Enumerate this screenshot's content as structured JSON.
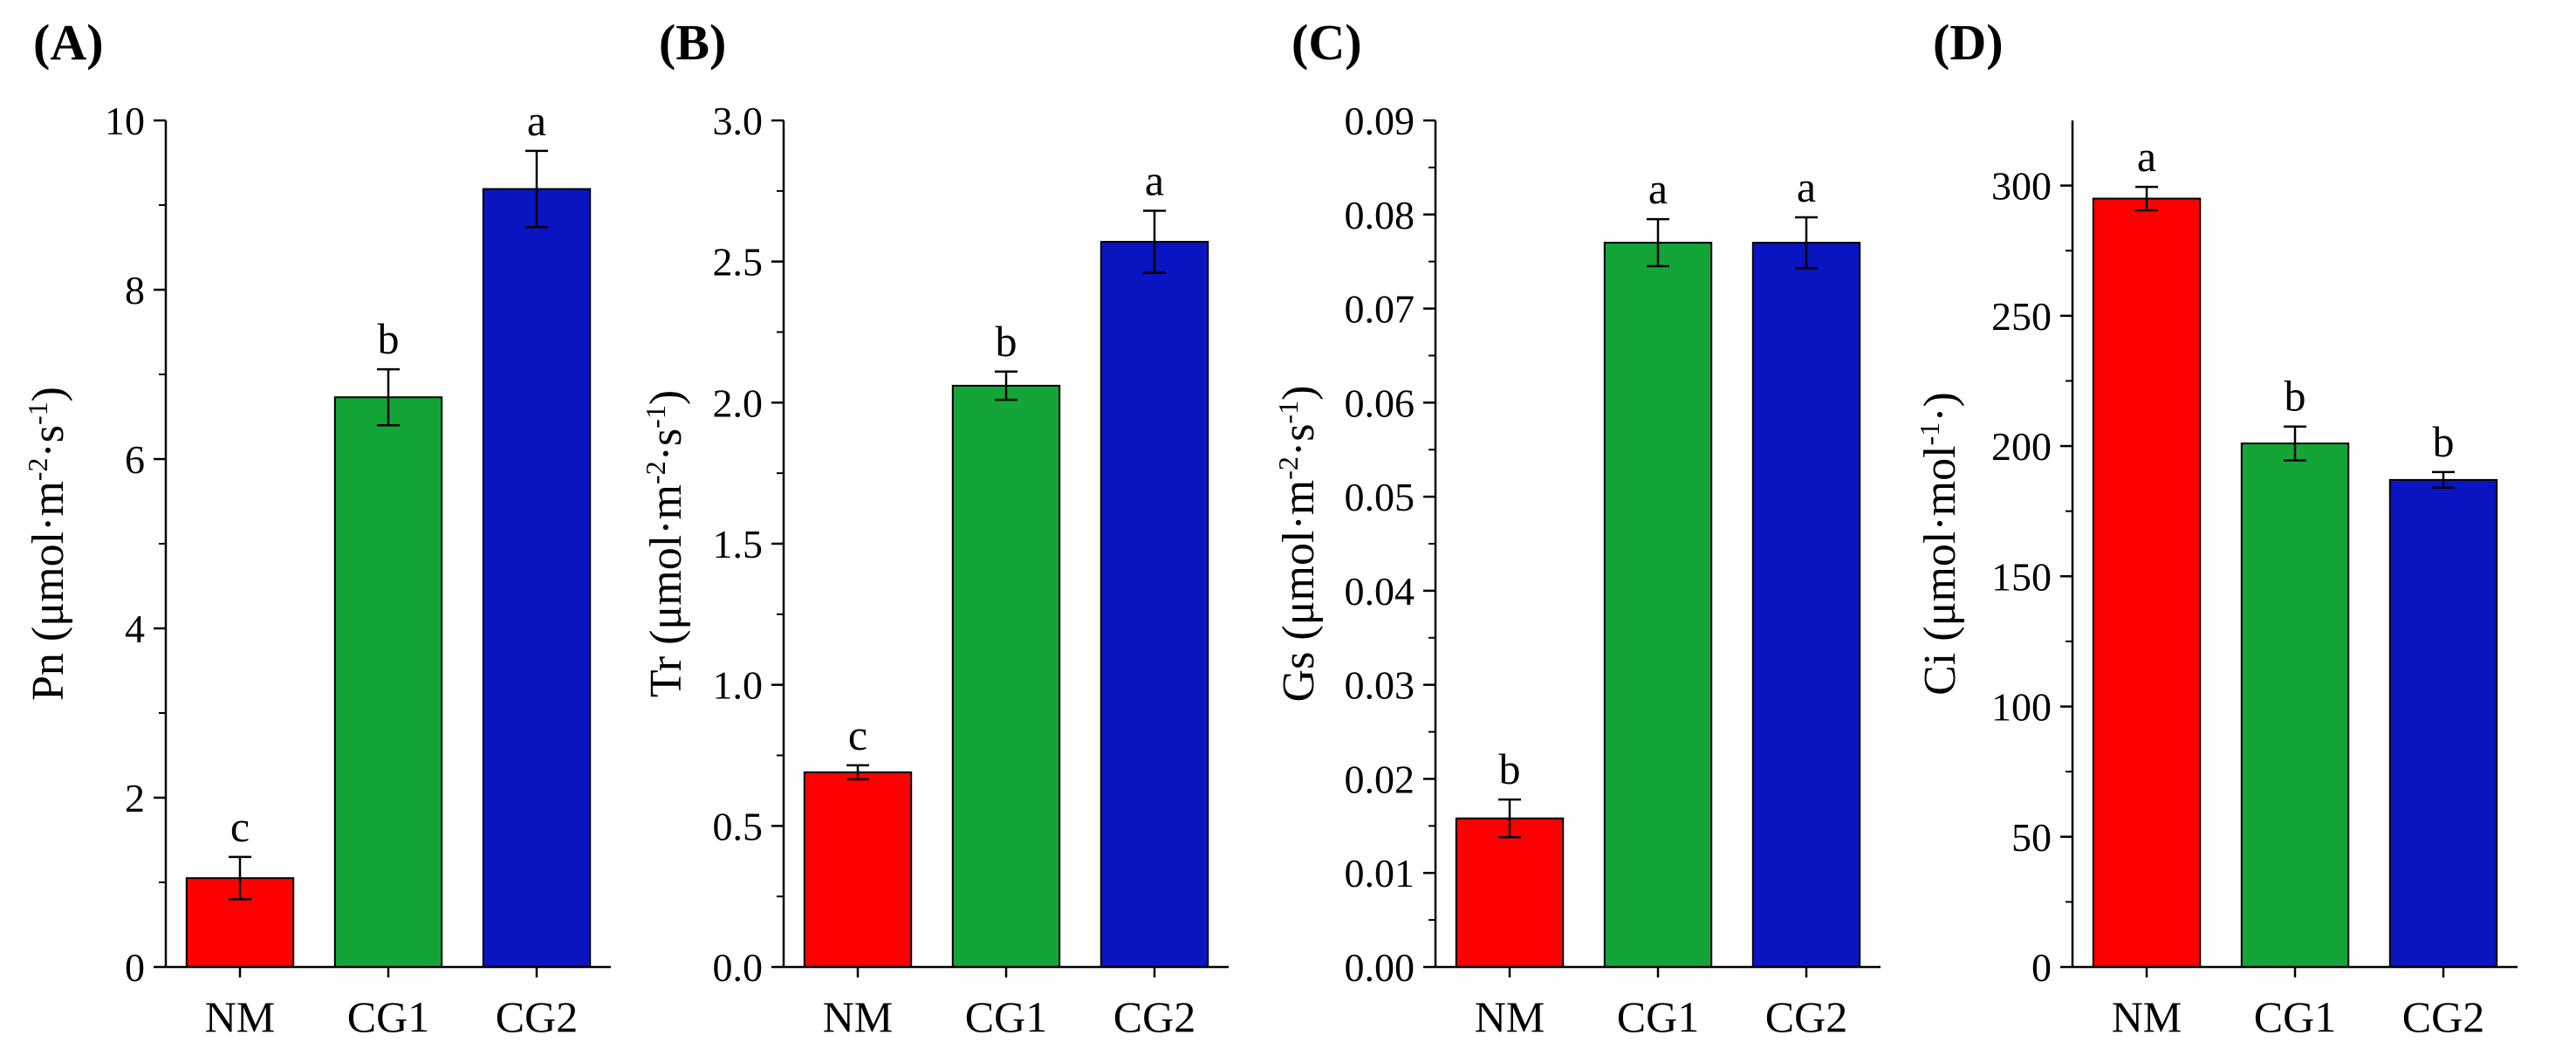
{
  "figure": {
    "background": "#ffffff",
    "axis_color": "#000000"
  },
  "chart_data": [
    {
      "type": "bar",
      "panel_label": "(A)",
      "title": "",
      "categories": [
        "NM",
        "CG1",
        "CG2"
      ],
      "values": [
        1.05,
        6.73,
        9.19
      ],
      "errors": [
        0.25,
        0.33,
        0.45
      ],
      "letters": [
        "c",
        "b",
        "a"
      ],
      "colors": [
        "#ff0000",
        "#13a538",
        "#0a14c0"
      ],
      "ylabel": {
        "base": "Pn (μmol·m",
        "sup1": "-2",
        "mid": "·s",
        "sup2": "-1",
        "end": ")"
      },
      "ylim": [
        0,
        10
      ],
      "yticks": [
        0,
        2,
        4,
        6,
        8,
        10
      ],
      "ytick_labels": [
        "0",
        "2",
        "4",
        "6",
        "8",
        "10"
      ]
    },
    {
      "type": "bar",
      "panel_label": "(B)",
      "title": "",
      "categories": [
        "NM",
        "CG1",
        "CG2"
      ],
      "values": [
        0.69,
        2.06,
        2.57
      ],
      "errors": [
        0.025,
        0.05,
        0.11
      ],
      "letters": [
        "c",
        "b",
        "a"
      ],
      "colors": [
        "#ff0000",
        "#13a538",
        "#0a14c0"
      ],
      "ylabel": {
        "base": "Tr (μmol·m",
        "sup1": "-2",
        "mid": "·s",
        "sup2": "-1",
        "end": ")"
      },
      "ylim": [
        0,
        3
      ],
      "yticks": [
        0,
        0.5,
        1,
        1.5,
        2,
        2.5,
        3
      ],
      "ytick_labels": [
        "0.0",
        "0.5",
        "1.0",
        "1.5",
        "2.0",
        "2.5",
        "3.0"
      ]
    },
    {
      "type": "bar",
      "panel_label": "(C)",
      "title": "",
      "categories": [
        "NM",
        "CG1",
        "CG2"
      ],
      "values": [
        0.0158,
        0.077,
        0.077
      ],
      "errors": [
        0.002,
        0.0025,
        0.0027
      ],
      "letters": [
        "b",
        "a",
        "a"
      ],
      "colors": [
        "#ff0000",
        "#13a538",
        "#0a14c0"
      ],
      "ylabel": {
        "base": "Gs (μmol·m",
        "sup1": "-2",
        "mid": "·s",
        "sup2": "-1",
        "end": ")"
      },
      "ylim": [
        0,
        0.09
      ],
      "yticks": [
        0,
        0.01,
        0.02,
        0.03,
        0.04,
        0.05,
        0.06,
        0.07,
        0.08,
        0.09
      ],
      "ytick_labels": [
        "0.00",
        "0.01",
        "0.02",
        "0.03",
        "0.04",
        "0.05",
        "0.06",
        "0.07",
        "0.08",
        "0.09"
      ]
    },
    {
      "type": "bar",
      "panel_label": "(D)",
      "title": "",
      "categories": [
        "NM",
        "CG1",
        "CG2"
      ],
      "values": [
        295,
        201,
        187
      ],
      "errors": [
        4.5,
        6.5,
        3
      ],
      "letters": [
        "a",
        "b",
        "b"
      ],
      "colors": [
        "#ff0000",
        "#13a538",
        "#0a14c0"
      ],
      "ylabel": {
        "base": "Ci (μmol·mol",
        "sup1": "-1",
        "mid": "·",
        "sup2": "",
        "end": ")"
      },
      "ylim": [
        0,
        325
      ],
      "yticks": [
        0,
        50,
        100,
        150,
        200,
        250,
        300
      ],
      "ytick_labels": [
        "0",
        "50",
        "100",
        "150",
        "200",
        "250",
        "300"
      ]
    }
  ]
}
